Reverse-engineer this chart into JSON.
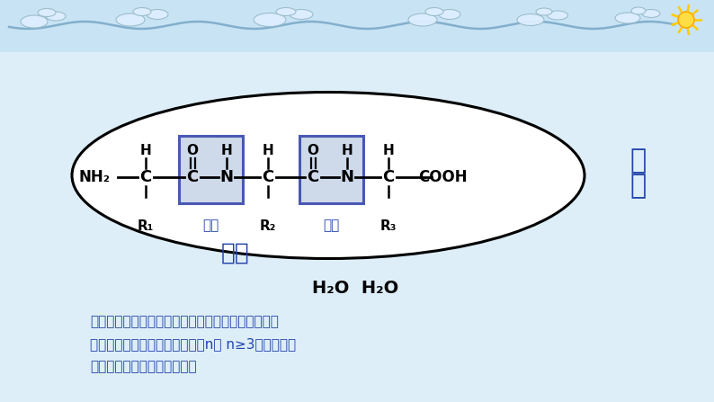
{
  "bg_color": "#ddeef8",
  "ellipse_color": "#000000",
  "box_fill": "#c8d4e8",
  "box_edge": "#3344aa",
  "text_black": "#000000",
  "text_blue": "#2244aa",
  "title_3pep": "三能",
  "title_2pep": "二能",
  "peptide_bond": "能键",
  "h2o_text": "H₂O  H₂O",
  "body_lines": [
    "以此类推，由多个氨基酸分子缩合而成的含有多个能",
    "键的化合物，叫多能（锁状）由n（ n≥3）个氨基酸",
    "分子以能键相连形成的能锁。"
  ]
}
